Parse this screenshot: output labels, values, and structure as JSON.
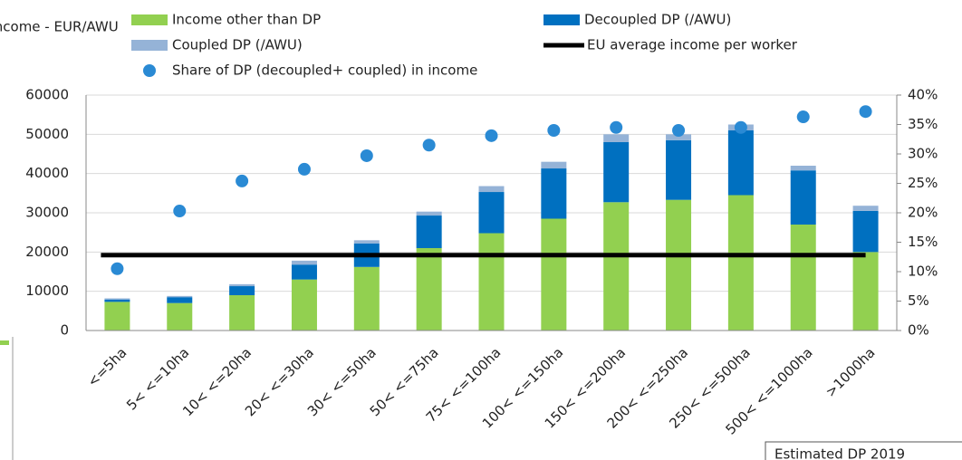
{
  "chart_data": {
    "type": "stacked_bar",
    "y_label": "Income - EUR/AWU",
    "categories": [
      "<=5ha",
      "5< <=10ha",
      "10< <=20ha",
      "20< <=30ha",
      "30< <=50ha",
      "50< <=75ha",
      "75< <=100ha",
      "100< <=150ha",
      "150< <=200ha",
      "200< <=250ha",
      "250< <=500ha",
      "500< <=1000ha",
      ">1000ha"
    ],
    "series": [
      {
        "name": "Income other than DP",
        "color": "#92d050",
        "values": [
          7300,
          7000,
          9000,
          13000,
          16200,
          21000,
          24800,
          28500,
          32700,
          33300,
          34500,
          27000,
          20000
        ]
      },
      {
        "name": "Decoupled DP (/AWU)",
        "color": "#0070c0",
        "values": [
          600,
          1500,
          2300,
          3800,
          6000,
          8300,
          10500,
          12800,
          15300,
          15200,
          16500,
          13800,
          10500
        ]
      },
      {
        "name": "Coupled DP (/AWU)",
        "color": "#95b3d7",
        "values": [
          300,
          300,
          500,
          1000,
          800,
          1000,
          1500,
          1700,
          2000,
          1500,
          1500,
          1200,
          1300
        ]
      }
    ],
    "eu_average": {
      "name": "EU average income per worker",
      "color": "#000000",
      "value": 19200
    },
    "share": {
      "name": "Share of DP (decoupled+ coupled) in income",
      "color": "#2a8ad4",
      "axis": "y2",
      "values": [
        10.5,
        20.3,
        25.4,
        27.4,
        29.7,
        31.5,
        33.1,
        34,
        34.5,
        34,
        34.5,
        36.3,
        37.2
      ]
    },
    "ylim": [
      0,
      60000
    ],
    "yticks": [
      0,
      10000,
      20000,
      30000,
      40000,
      50000,
      60000
    ],
    "y2lim": [
      0,
      40
    ],
    "y2ticks": [
      {
        "value": 0,
        "label": "0%"
      },
      {
        "value": 5,
        "label": "5%"
      },
      {
        "value": 10,
        "label": "10%"
      },
      {
        "value": 15,
        "label": "15%"
      },
      {
        "value": 20,
        "label": "20%"
      },
      {
        "value": 25,
        "label": "25%"
      },
      {
        "value": 30,
        "label": "30%"
      },
      {
        "value": 35,
        "label": "35%"
      },
      {
        "value": 40,
        "label": "40%"
      }
    ],
    "grid": true,
    "annotation": "Estimated DP 2019"
  }
}
